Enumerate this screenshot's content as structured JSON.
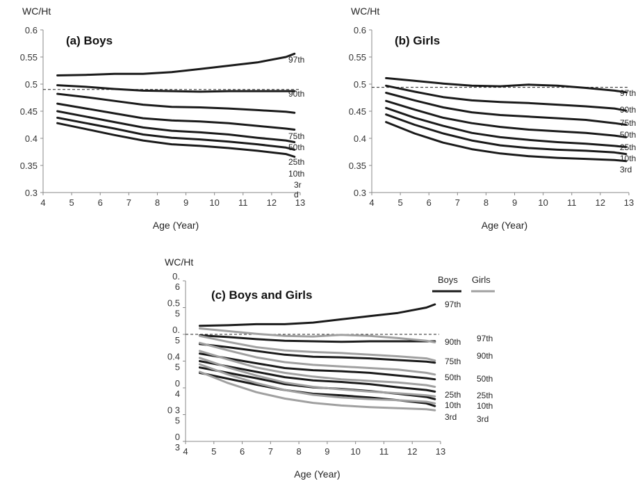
{
  "chart_data": [
    {
      "type": "line",
      "title": "(a) Boys",
      "ylabel": "WC/Ht",
      "xlabel": "Age (Year)",
      "xlim": [
        4,
        13
      ],
      "ylim": [
        0.3,
        0.6
      ],
      "x_ticks": [
        "4",
        "5",
        "6",
        "7",
        "8",
        "9",
        "10",
        "11",
        "12",
        "13"
      ],
      "y_ticks": [
        "0.3",
        "0.35",
        "0.4",
        "0.45",
        "0.5",
        "0.55",
        "0.6"
      ],
      "x": [
        4.5,
        5.5,
        6.5,
        7.5,
        8.5,
        9.5,
        10.5,
        11.5,
        12.5,
        12.8
      ],
      "reference_line": 0.49,
      "series": [
        {
          "name": "97th",
          "values": [
            0.516,
            0.517,
            0.519,
            0.519,
            0.522,
            0.528,
            0.534,
            0.54,
            0.55,
            0.556
          ]
        },
        {
          "name": "90th",
          "values": [
            0.498,
            0.495,
            0.491,
            0.488,
            0.487,
            0.486,
            0.487,
            0.487,
            0.487,
            0.487
          ]
        },
        {
          "name": "75th",
          "values": [
            0.482,
            0.476,
            0.469,
            0.462,
            0.458,
            0.457,
            0.455,
            0.452,
            0.449,
            0.447
          ]
        },
        {
          "name": "50th",
          "values": [
            0.464,
            0.455,
            0.446,
            0.437,
            0.433,
            0.431,
            0.428,
            0.423,
            0.418,
            0.416
          ]
        },
        {
          "name": "25th",
          "values": [
            0.45,
            0.44,
            0.43,
            0.42,
            0.414,
            0.411,
            0.407,
            0.401,
            0.396,
            0.393
          ]
        },
        {
          "name": "10th",
          "values": [
            0.438,
            0.428,
            0.418,
            0.407,
            0.401,
            0.398,
            0.394,
            0.389,
            0.383,
            0.379
          ]
        },
        {
          "name": "3r\nd",
          "values": [
            0.428,
            0.417,
            0.406,
            0.396,
            0.389,
            0.386,
            0.382,
            0.377,
            0.371,
            0.366
          ]
        }
      ]
    },
    {
      "type": "line",
      "title": "(b) Girls",
      "ylabel": "WC/Ht",
      "xlabel": "Age (Year)",
      "xlim": [
        4,
        13
      ],
      "ylim": [
        0.3,
        0.6
      ],
      "x_ticks": [
        "4",
        "5",
        "6",
        "7",
        "8",
        "9",
        "10",
        "11",
        "12",
        "13"
      ],
      "y_ticks": [
        "0.3",
        "0.35",
        "0.4",
        "0.45",
        "0.5",
        "0.55",
        "0.6"
      ],
      "x": [
        4.5,
        5.5,
        6.5,
        7.5,
        8.5,
        9.5,
        10.5,
        11.5,
        12.5,
        12.9
      ],
      "reference_line": 0.494,
      "series": [
        {
          "name": "97th",
          "values": [
            0.511,
            0.506,
            0.501,
            0.497,
            0.496,
            0.499,
            0.497,
            0.493,
            0.488,
            0.485
          ]
        },
        {
          "name": "90th",
          "values": [
            0.497,
            0.486,
            0.476,
            0.47,
            0.467,
            0.465,
            0.462,
            0.459,
            0.455,
            0.451
          ]
        },
        {
          "name": "75th",
          "values": [
            0.484,
            0.47,
            0.457,
            0.448,
            0.443,
            0.44,
            0.437,
            0.434,
            0.428,
            0.425
          ]
        },
        {
          "name": "50th",
          "values": [
            0.469,
            0.453,
            0.438,
            0.428,
            0.421,
            0.416,
            0.413,
            0.41,
            0.405,
            0.402
          ]
        },
        {
          "name": "25th",
          "values": [
            0.456,
            0.438,
            0.423,
            0.41,
            0.402,
            0.397,
            0.393,
            0.39,
            0.386,
            0.384
          ]
        },
        {
          "name": "10th",
          "values": [
            0.444,
            0.425,
            0.409,
            0.396,
            0.387,
            0.382,
            0.379,
            0.377,
            0.374,
            0.371
          ]
        },
        {
          "name": "3rd",
          "values": [
            0.43,
            0.409,
            0.392,
            0.38,
            0.372,
            0.367,
            0.364,
            0.362,
            0.36,
            0.358
          ]
        }
      ]
    },
    {
      "type": "line",
      "title": "(c) Boys and Girls",
      "ylabel": "WC/Ht",
      "xlabel": "Age (Year)",
      "xlim": [
        4,
        13
      ],
      "ylim": [
        0.3,
        0.6
      ],
      "x_ticks": [
        "4",
        "5",
        "6",
        "7",
        "8",
        "9",
        "10",
        "11",
        "12",
        "13"
      ],
      "y_ticks": [
        "0\n3",
        "0 3\n5",
        "0\n4",
        "0.4\n5",
        "0.\n5",
        "0.5\n5",
        "0.\n6"
      ],
      "x": [
        4.5,
        5.5,
        6.5,
        7.5,
        8.5,
        9.5,
        10.5,
        11.5,
        12.5,
        12.8
      ],
      "reference_line": 0.5,
      "legend": {
        "position": "top-right",
        "entries": [
          {
            "label": "Boys",
            "color": "#1a1a1a"
          },
          {
            "label": "Girls",
            "color": "#a0a0a0"
          }
        ]
      },
      "boys_label_header": "Boys",
      "girls_label_header": "Girls",
      "series": [
        {
          "name": "Boys 97th",
          "group": "boys",
          "label": "97th",
          "values": [
            0.516,
            0.517,
            0.519,
            0.519,
            0.522,
            0.528,
            0.534,
            0.54,
            0.55,
            0.556
          ]
        },
        {
          "name": "Boys 90th",
          "group": "boys",
          "label": "90th",
          "values": [
            0.498,
            0.495,
            0.491,
            0.488,
            0.487,
            0.486,
            0.487,
            0.487,
            0.487,
            0.487
          ]
        },
        {
          "name": "Boys 75th",
          "group": "boys",
          "label": "75th",
          "values": [
            0.482,
            0.476,
            0.469,
            0.462,
            0.458,
            0.457,
            0.455,
            0.452,
            0.449,
            0.447
          ]
        },
        {
          "name": "Boys 50th",
          "group": "boys",
          "label": "50th",
          "values": [
            0.464,
            0.455,
            0.446,
            0.437,
            0.433,
            0.431,
            0.428,
            0.423,
            0.418,
            0.416
          ]
        },
        {
          "name": "Boys 25th",
          "group": "boys",
          "label": "25th",
          "values": [
            0.45,
            0.44,
            0.43,
            0.42,
            0.414,
            0.411,
            0.407,
            0.401,
            0.396,
            0.393
          ]
        },
        {
          "name": "Boys 10th",
          "group": "boys",
          "label": "10th",
          "values": [
            0.438,
            0.428,
            0.418,
            0.407,
            0.401,
            0.398,
            0.394,
            0.389,
            0.383,
            0.379
          ]
        },
        {
          "name": "Boys 3rd",
          "group": "boys",
          "label": "3rd",
          "values": [
            0.428,
            0.417,
            0.406,
            0.396,
            0.389,
            0.386,
            0.382,
            0.377,
            0.371,
            0.366
          ]
        },
        {
          "name": "Girls 97th",
          "group": "girls",
          "label": "97th",
          "values": [
            0.511,
            0.506,
            0.501,
            0.497,
            0.496,
            0.499,
            0.497,
            0.493,
            0.488,
            0.485
          ]
        },
        {
          "name": "Girls 90th",
          "group": "girls",
          "label": "90th",
          "values": [
            0.497,
            0.486,
            0.476,
            0.47,
            0.467,
            0.465,
            0.462,
            0.459,
            0.455,
            0.451
          ]
        },
        {
          "name": "Girls 75th",
          "group": "girls",
          "label": "75th",
          "values": [
            0.484,
            0.47,
            0.457,
            0.448,
            0.443,
            0.44,
            0.437,
            0.434,
            0.428,
            0.425
          ]
        },
        {
          "name": "Girls 50th",
          "group": "girls",
          "label": "50th",
          "values": [
            0.469,
            0.453,
            0.438,
            0.428,
            0.421,
            0.416,
            0.413,
            0.41,
            0.405,
            0.402
          ]
        },
        {
          "name": "Girls 25th",
          "group": "girls",
          "label": "25th",
          "values": [
            0.456,
            0.438,
            0.423,
            0.41,
            0.402,
            0.397,
            0.393,
            0.39,
            0.386,
            0.384
          ]
        },
        {
          "name": "Girls 10th",
          "group": "girls",
          "label": "10th",
          "values": [
            0.444,
            0.425,
            0.409,
            0.396,
            0.387,
            0.382,
            0.379,
            0.377,
            0.374,
            0.371
          ]
        },
        {
          "name": "Girls 3rd",
          "group": "girls",
          "label": "3rd",
          "values": [
            0.43,
            0.409,
            0.392,
            0.38,
            0.372,
            0.367,
            0.364,
            0.362,
            0.36,
            0.358
          ]
        }
      ]
    }
  ],
  "colors": {
    "boys": "#1a1a1a",
    "girls": "#a0a0a0",
    "single": "#1a1a1a"
  }
}
